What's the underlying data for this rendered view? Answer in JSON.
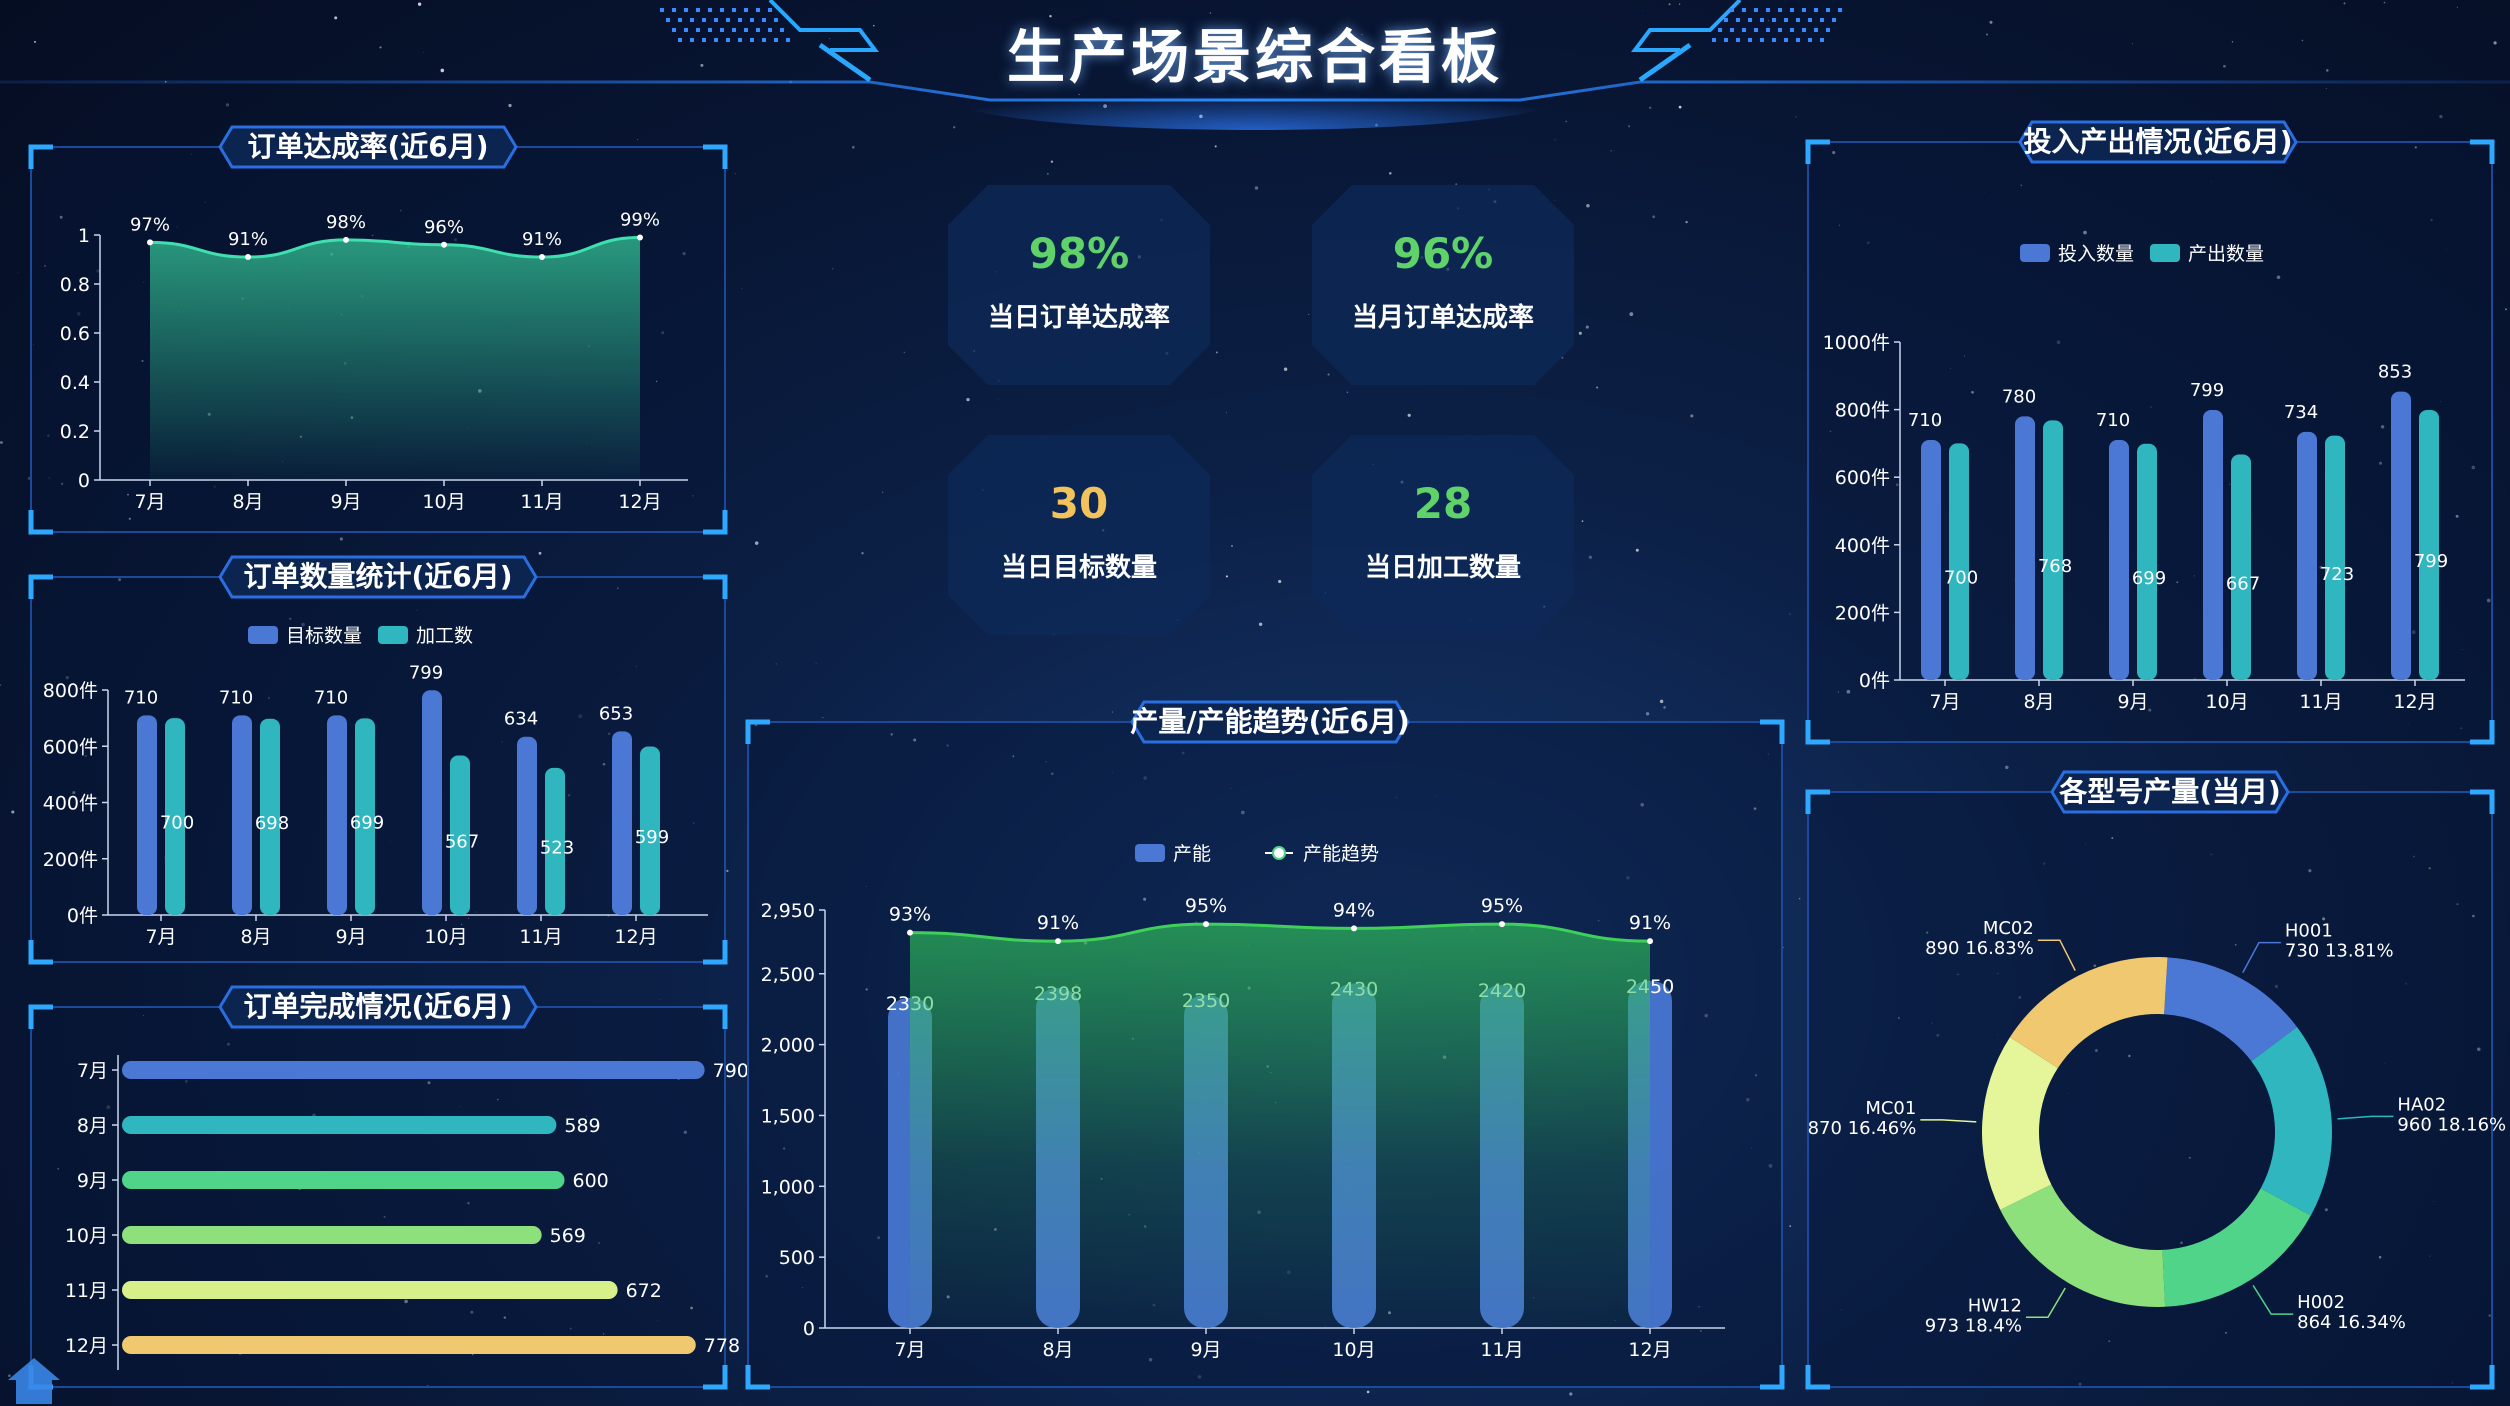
{
  "title": "生产场景综合看板",
  "colors": {
    "blue": "#4a78d4",
    "teal": "#2fb6bf",
    "green": "#4fd48a",
    "green2": "#8ee07c",
    "lime": "#d8f08a",
    "yellow": "#f0c870",
    "kpi_green": "#5fd36a",
    "kpi_yellow": "#f2c25c"
  },
  "kpis": [
    {
      "value": "98%",
      "label": "当日订单达成率",
      "color": "#5fd36a"
    },
    {
      "value": "96%",
      "label": "当月订单达成率",
      "color": "#5fd36a"
    },
    {
      "value": "30",
      "label": "当日目标数量",
      "color": "#f2c25c"
    },
    {
      "value": "28",
      "label": "当日加工数量",
      "color": "#5fd36a"
    }
  ],
  "panels": {
    "order_rate": {
      "title": "订单达成率(近6月)"
    },
    "order_count": {
      "title": "订单数量统计(近6月)"
    },
    "order_done": {
      "title": "订单完成情况(近6月)"
    },
    "capacity": {
      "title": "产量/产能趋势(近6月)"
    },
    "io": {
      "title": "投入产出情况(近6月)"
    },
    "model": {
      "title": "各型号产量(当月)"
    }
  },
  "chart_data": [
    {
      "id": "order_rate",
      "type": "area",
      "categories": [
        "7月",
        "8月",
        "9月",
        "10月",
        "11月",
        "12月"
      ],
      "values": [
        0.97,
        0.91,
        0.98,
        0.96,
        0.91,
        0.99
      ],
      "labels": [
        "97%",
        "91%",
        "98%",
        "96%",
        "91%",
        "99%"
      ],
      "ylim": [
        0,
        1
      ],
      "yticks": [
        "0",
        "0.2",
        "0.4",
        "0.6",
        "0.8",
        "1"
      ]
    },
    {
      "id": "order_count",
      "type": "bar",
      "categories": [
        "7月",
        "8月",
        "9月",
        "10月",
        "11月",
        "12月"
      ],
      "series": [
        {
          "name": "目标数量",
          "values": [
            710,
            710,
            710,
            799,
            634,
            653
          ],
          "color": "#4a78d4"
        },
        {
          "name": "加工数",
          "values": [
            700,
            698,
            699,
            567,
            523,
            599
          ],
          "color": "#2fb6bf"
        }
      ],
      "ylim": [
        0,
        800
      ],
      "yticks": [
        "0件",
        "200件",
        "400件",
        "600件",
        "800件"
      ],
      "legend": "top-center"
    },
    {
      "id": "order_done",
      "type": "bar",
      "orientation": "horizontal",
      "categories": [
        "7月",
        "8月",
        "9月",
        "10月",
        "11月",
        "12月"
      ],
      "values": [
        790,
        589,
        600,
        569,
        672,
        778
      ],
      "colors": [
        "#4a78d4",
        "#2fb6bf",
        "#4fd48a",
        "#8ee07c",
        "#d8f08a",
        "#f0c870"
      ],
      "xlim": [
        0,
        800
      ]
    },
    {
      "id": "capacity",
      "type": "bar+line",
      "categories": [
        "7月",
        "8月",
        "9月",
        "10月",
        "11月",
        "12月"
      ],
      "series": [
        {
          "name": "产能",
          "values": [
            2330,
            2398,
            2350,
            2430,
            2420,
            2450
          ],
          "color": "#4a78d4"
        },
        {
          "name": "产能趋势",
          "values": [
            0.93,
            0.91,
            0.95,
            0.94,
            0.95,
            0.91
          ],
          "labels": [
            "93%",
            "91%",
            "95%",
            "94%",
            "95%",
            "91%"
          ],
          "color": "#4fd48a"
        }
      ],
      "ylim": [
        0,
        2950
      ],
      "yticks": [
        "0",
        "500",
        "1,000",
        "1,500",
        "2,000",
        "2,500",
        "2,950"
      ],
      "legend": "top-center"
    },
    {
      "id": "io",
      "type": "bar",
      "categories": [
        "7月",
        "8月",
        "9月",
        "10月",
        "11月",
        "12月"
      ],
      "series": [
        {
          "name": "投入数量",
          "values": [
            710,
            780,
            710,
            799,
            734,
            853
          ],
          "color": "#4a78d4"
        },
        {
          "name": "产出数量",
          "values": [
            700,
            768,
            699,
            667,
            723,
            799
          ],
          "color": "#2fb6bf"
        }
      ],
      "ylim": [
        0,
        1000
      ],
      "yticks": [
        "0件",
        "200件",
        "400件",
        "600件",
        "800件",
        "1000件"
      ],
      "legend": "top-center"
    },
    {
      "id": "model",
      "type": "pie",
      "donut": true,
      "slices": [
        {
          "name": "H001",
          "value": 730,
          "pct": "13.81%",
          "color": "#4a78d4"
        },
        {
          "name": "HA02",
          "value": 960,
          "pct": "18.16%",
          "color": "#2fb6bf"
        },
        {
          "name": "H002",
          "value": 864,
          "pct": "16.34%",
          "color": "#4fd48a"
        },
        {
          "name": "HW12",
          "value": 973,
          "pct": "18.4%",
          "color": "#8ee07c"
        },
        {
          "name": "MC01",
          "value": 870,
          "pct": "16.46%",
          "color": "#e4f59a"
        },
        {
          "name": "MC02",
          "value": 890,
          "pct": "16.83%",
          "color": "#f0c870"
        }
      ]
    }
  ]
}
